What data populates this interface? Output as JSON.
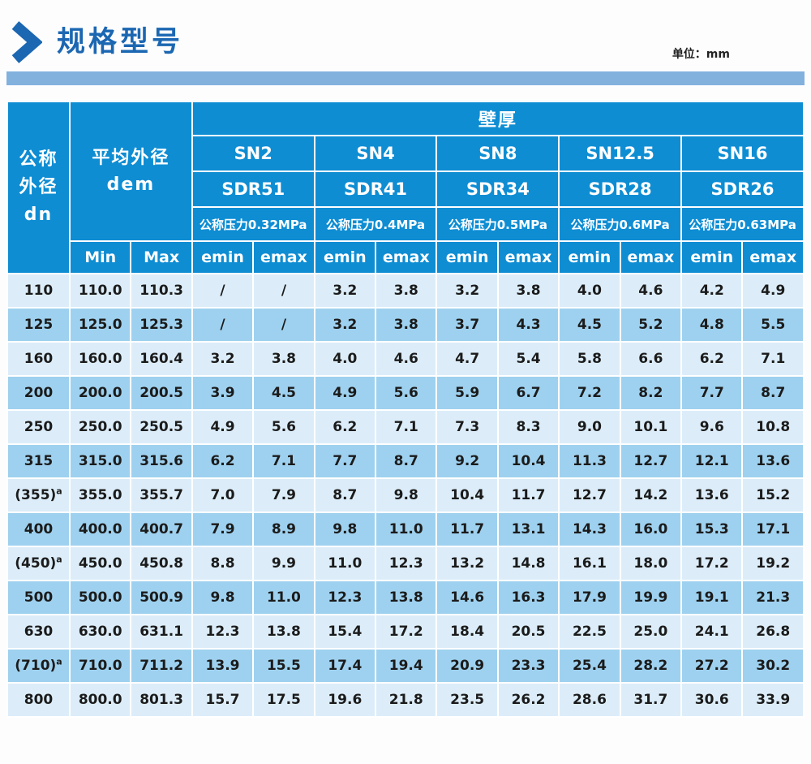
{
  "page": {
    "title": "规格型号",
    "unit_label": "单位：mm"
  },
  "colors": {
    "title_blue": "#1b67b2",
    "header_blue": "#0e8dd3",
    "row_light": "#dcedf9",
    "row_medium": "#9ed1ef",
    "band_blue": "#82b1de",
    "cell_text": "#1b1b1b"
  },
  "table": {
    "corner_header": {
      "line1": "公称",
      "line2": "外径",
      "line3": "dn"
    },
    "avg_header": {
      "line1": "平均外径",
      "line2": "dem"
    },
    "wall_header": "壁厚",
    "min_label": "Min",
    "max_label": "Max",
    "emin_label": "emin",
    "emax_label": "emax",
    "groups": [
      {
        "sn": "SN2",
        "sdr": "SDR51",
        "pressure": "公称压力0.32MPa"
      },
      {
        "sn": "SN4",
        "sdr": "SDR41",
        "pressure": "公称压力0.4MPa"
      },
      {
        "sn": "SN8",
        "sdr": "SDR34",
        "pressure": "公称压力0.5MPa"
      },
      {
        "sn": "SN12.5",
        "sdr": "SDR28",
        "pressure": "公称压力0.6MPa"
      },
      {
        "sn": "SN16",
        "sdr": "SDR26",
        "pressure": "公称压力0.63MPa"
      }
    ],
    "rows": [
      {
        "dn": "110",
        "sup": "",
        "min": "110.0",
        "max": "110.3",
        "values": [
          "/",
          "/",
          "3.2",
          "3.8",
          "3.2",
          "3.8",
          "4.0",
          "4.6",
          "4.2",
          "4.9"
        ]
      },
      {
        "dn": "125",
        "sup": "",
        "min": "125.0",
        "max": "125.3",
        "values": [
          "/",
          "/",
          "3.2",
          "3.8",
          "3.7",
          "4.3",
          "4.5",
          "5.2",
          "4.8",
          "5.5"
        ]
      },
      {
        "dn": "160",
        "sup": "",
        "min": "160.0",
        "max": "160.4",
        "values": [
          "3.2",
          "3.8",
          "4.0",
          "4.6",
          "4.7",
          "5.4",
          "5.8",
          "6.6",
          "6.2",
          "7.1"
        ]
      },
      {
        "dn": "200",
        "sup": "",
        "min": "200.0",
        "max": "200.5",
        "values": [
          "3.9",
          "4.5",
          "4.9",
          "5.6",
          "5.9",
          "6.7",
          "7.2",
          "8.2",
          "7.7",
          "8.7"
        ]
      },
      {
        "dn": "250",
        "sup": "",
        "min": "250.0",
        "max": "250.5",
        "values": [
          "4.9",
          "5.6",
          "6.2",
          "7.1",
          "7.3",
          "8.3",
          "9.0",
          "10.1",
          "9.6",
          "10.8"
        ]
      },
      {
        "dn": "315",
        "sup": "",
        "min": "315.0",
        "max": "315.6",
        "values": [
          "6.2",
          "7.1",
          "7.7",
          "8.7",
          "9.2",
          "10.4",
          "11.3",
          "12.7",
          "12.1",
          "13.6"
        ]
      },
      {
        "dn": "(355)",
        "sup": "a",
        "min": "355.0",
        "max": "355.7",
        "values": [
          "7.0",
          "7.9",
          "8.7",
          "9.8",
          "10.4",
          "11.7",
          "12.7",
          "14.2",
          "13.6",
          "15.2"
        ]
      },
      {
        "dn": "400",
        "sup": "",
        "min": "400.0",
        "max": "400.7",
        "values": [
          "7.9",
          "8.9",
          "9.8",
          "11.0",
          "11.7",
          "13.1",
          "14.3",
          "16.0",
          "15.3",
          "17.1"
        ]
      },
      {
        "dn": "(450)",
        "sup": "a",
        "min": "450.0",
        "max": "450.8",
        "values": [
          "8.8",
          "9.9",
          "11.0",
          "12.3",
          "13.2",
          "14.8",
          "16.1",
          "18.0",
          "17.2",
          "19.2"
        ]
      },
      {
        "dn": "500",
        "sup": "",
        "min": "500.0",
        "max": "500.9",
        "values": [
          "9.8",
          "11.0",
          "12.3",
          "13.8",
          "14.6",
          "16.3",
          "17.9",
          "19.9",
          "19.1",
          "21.3"
        ]
      },
      {
        "dn": "630",
        "sup": "",
        "min": "630.0",
        "max": "631.1",
        "values": [
          "12.3",
          "13.8",
          "15.4",
          "17.2",
          "18.4",
          "20.5",
          "22.5",
          "25.0",
          "24.1",
          "26.8"
        ]
      },
      {
        "dn": "(710)",
        "sup": "a",
        "min": "710.0",
        "max": "711.2",
        "values": [
          "13.9",
          "15.5",
          "17.4",
          "19.4",
          "20.9",
          "23.3",
          "25.4",
          "28.2",
          "27.2",
          "30.2"
        ]
      },
      {
        "dn": "800",
        "sup": "",
        "min": "800.0",
        "max": "801.3",
        "values": [
          "15.7",
          "17.5",
          "19.6",
          "21.8",
          "23.5",
          "26.2",
          "28.6",
          "31.7",
          "30.6",
          "33.9"
        ]
      }
    ]
  }
}
